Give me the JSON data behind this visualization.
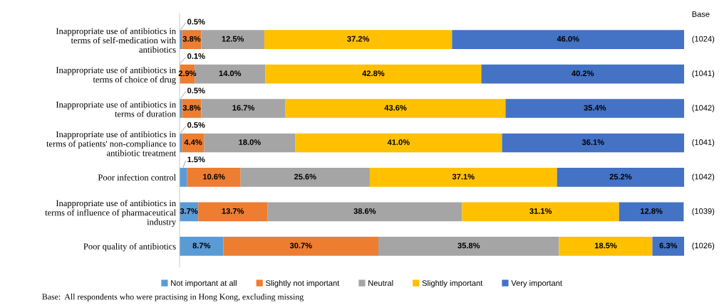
{
  "chart_data": {
    "type": "bar",
    "orientation": "horizontal",
    "stacked": true,
    "categories": [
      "Inappropriate use of antibiotics in\nterms of self-medication with\nantibiotics",
      "Inappropriate use of antibiotics in\nterms of choice of drug",
      "Inappropriate use of antibiotics in\nterms of duration",
      "Inappropriate use of antibiotics in\nterms of patients' non-compliance to\nantibiotic treatment",
      "Poor infection control",
      "Inappropriate use of antibiotics in\nterms of influence of pharmaceutical\nindustry",
      "Poor quality of antibiotics"
    ],
    "series": [
      {
        "name": "Not important at all",
        "color": "#5b9bd5",
        "values": [
          0.5,
          0.1,
          0.5,
          0.5,
          1.5,
          3.7,
          8.7
        ],
        "value_labels": [
          "0.5%",
          "0.1%",
          "0.5%",
          "0.5%",
          "1.5%",
          "3.7%",
          "8.7%"
        ]
      },
      {
        "name": "Slightly not important",
        "color": "#ed7d31",
        "values": [
          3.8,
          2.9,
          3.8,
          4.4,
          10.6,
          13.7,
          30.7
        ],
        "value_labels": [
          "3.8%",
          "2.9%",
          "3.8%",
          "4.4%",
          "10.6%",
          "13.7%",
          "30.7%"
        ]
      },
      {
        "name": "Neutral",
        "color": "#a5a5a5",
        "values": [
          12.5,
          14.0,
          16.7,
          18.0,
          25.6,
          38.6,
          35.8
        ],
        "value_labels": [
          "12.5%",
          "14.0%",
          "16.7%",
          "18.0%",
          "25.6%",
          "38.6%",
          "35.8%"
        ]
      },
      {
        "name": "Slightly important",
        "color": "#ffc000",
        "values": [
          37.2,
          42.8,
          43.6,
          41.0,
          37.1,
          31.1,
          18.5
        ],
        "value_labels": [
          "37.2%",
          "42.8%",
          "43.6%",
          "41.0%",
          "37.1%",
          "31.1%",
          "18.5%"
        ]
      },
      {
        "name": "Very important",
        "color": "#4472c4",
        "values": [
          46.0,
          40.2,
          35.4,
          36.1,
          25.2,
          12.8,
          6.3
        ],
        "value_labels": [
          "46.0%",
          "40.2%",
          "35.4%",
          "36.1%",
          "25.2%",
          "12.8%",
          "6.3%"
        ]
      }
    ],
    "xlim": [
      0,
      100
    ],
    "tick_labels": "y",
    "legend": "bottom",
    "grid": false,
    "annotations": [
      "Base",
      "(1024)",
      "(1041)",
      "(1042)",
      "(1041)",
      "(1042)",
      "(1039)",
      "(1026)",
      "Base:  All respondents who were practising in Hong Kong, excluding missing"
    ]
  }
}
